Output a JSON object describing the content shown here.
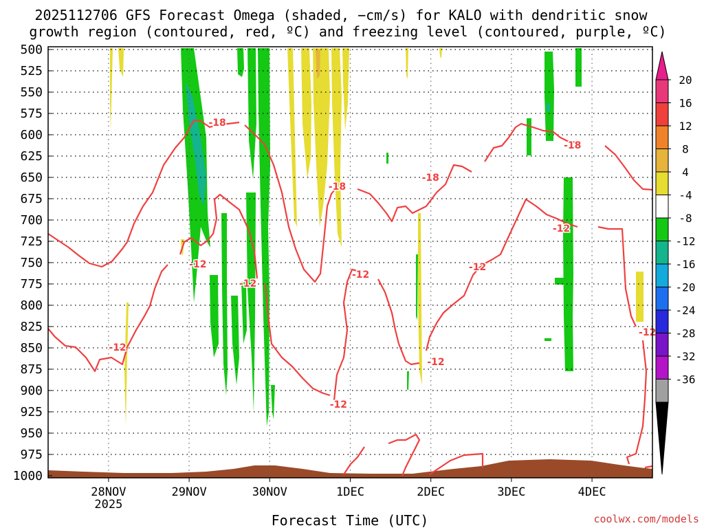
{
  "title": {
    "line1": "2025112706 GFS Forecast Omega (shaded, −cm/s) for KALO with dendritic snow",
    "line2": "growth region (contoured, red, ºC) and freezing level (contoured, purple, ºC)"
  },
  "footer": {
    "xlabel": "Forecast Time (UTC)",
    "credit": "coolwx.com/models"
  },
  "chart_data": {
    "type": "heatmap",
    "title": "2025112706 GFS Forecast Omega (shaded, −cm/s) for KALO with dendritic snow growth region (contoured, red, ºC) and freezing level (contoured, purple, ºC)",
    "xlabel": "Forecast Time (UTC)",
    "ylabel": "",
    "x_ticks": [
      {
        "label": "28NOV",
        "sub": "2025",
        "hours": 18
      },
      {
        "label": "29NOV",
        "sub": "",
        "hours": 42
      },
      {
        "label": "30NOV",
        "sub": "",
        "hours": 66
      },
      {
        "label": "1DEC",
        "sub": "",
        "hours": 90
      },
      {
        "label": "2DEC",
        "sub": "",
        "hours": 114
      },
      {
        "label": "3DEC",
        "sub": "",
        "hours": 138
      },
      {
        "label": "4DEC",
        "sub": "",
        "hours": 162
      }
    ],
    "xlim_hours": [
      0,
      180
    ],
    "y_ticks": [
      500,
      525,
      550,
      575,
      600,
      625,
      650,
      675,
      700,
      725,
      750,
      775,
      800,
      825,
      850,
      875,
      900,
      925,
      950,
      975,
      1000
    ],
    "ylim": [
      1000,
      500
    ],
    "grid": true,
    "colorbar": {
      "labels": [
        "20",
        "16",
        "12",
        "8",
        "4",
        "-4",
        "-8",
        "-12",
        "-16",
        "-20",
        "-24",
        "-28",
        "-32",
        "-36"
      ],
      "colors": [
        "#e8387a",
        "#f0403c",
        "#f0822a",
        "#e6b43a",
        "#e6dc32",
        "#ffffff",
        "#14c814",
        "#14b48c",
        "#14aadc",
        "#1e6ef0",
        "#2828dc",
        "#7a14c8",
        "#b414c8",
        "#a0a0a0"
      ],
      "top_triangle": "#e81e8c",
      "bottom_triangle": "#000000"
    },
    "contours": [
      {
        "label": "-18",
        "color": "#ef4040",
        "label_hours": [
          50.4,
          86.1,
          113.9,
          156.2
        ]
      },
      {
        "label": "-12",
        "color": "#ef4040",
        "label_hours": [
          20.7,
          44.6,
          59.5,
          86.5,
          93.1,
          115.5,
          127.9,
          152.9,
          178.5
        ]
      }
    ]
  }
}
